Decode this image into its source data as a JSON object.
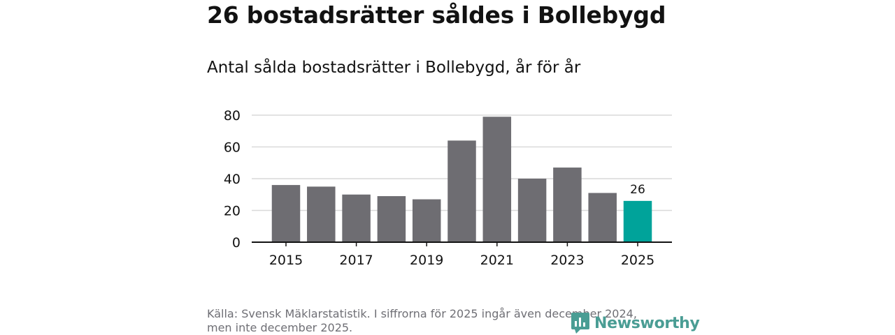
{
  "title": "26 bostadsrätter såldes i Bollebygd",
  "subtitle": "Antal sålda bostadsrätter i Bollebygd, år för år",
  "source_line1": "Källa: Svensk Mäklarstatistik. I siffrorna för 2025 ingår även december 2024,",
  "source_line2": "men inte december 2025.",
  "brand": "Newsworthy",
  "colors": {
    "bar": "#6e6d72",
    "highlight": "#00a39a",
    "grid": "#d9d9d9",
    "axis": "#121212",
    "brand": "#4a9d94"
  },
  "chart_data": {
    "type": "bar",
    "title": "Antal sålda bostadsrätter i Bollebygd, år för år",
    "xlabel": "",
    "ylabel": "",
    "categories": [
      "2015",
      "2016",
      "2017",
      "2018",
      "2019",
      "2020",
      "2021",
      "2022",
      "2023",
      "2024",
      "2025"
    ],
    "values": [
      36,
      35,
      30,
      29,
      27,
      64,
      79,
      40,
      47,
      31,
      26
    ],
    "ylim": [
      0,
      80
    ],
    "yticks": [
      0,
      20,
      40,
      60,
      80
    ],
    "xtick_labels": [
      "2015",
      "2017",
      "2019",
      "2021",
      "2023",
      "2025"
    ],
    "highlight_category": "2025",
    "highlight_label": "26",
    "grid": true
  }
}
